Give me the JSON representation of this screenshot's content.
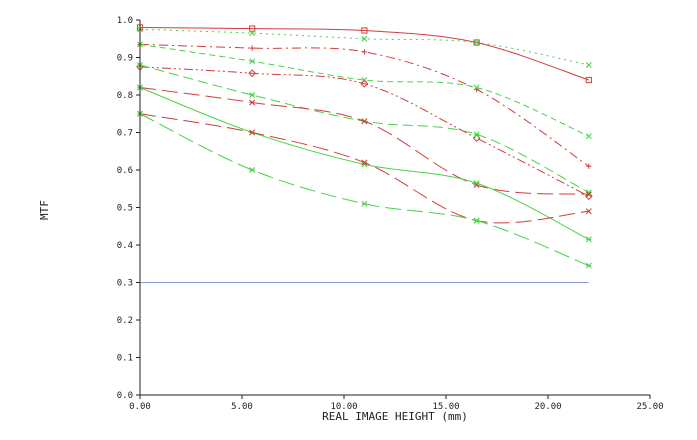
{
  "chart_data": {
    "type": "line",
    "xlabel": "REAL IMAGE HEIGHT (mm)",
    "ylabel": "MTF",
    "xlim": [
      0,
      25
    ],
    "ylim": [
      0,
      1
    ],
    "x_ticks": [
      "0.00",
      "5.00",
      "10.00",
      "15.00",
      "20.00",
      "25.00"
    ],
    "y_ticks": [
      "0.0",
      "0.1",
      "0.2",
      "0.3",
      "0.4",
      "0.5",
      "0.6",
      "0.7",
      "0.8",
      "0.9",
      "1.0"
    ],
    "grid": false,
    "legend": "none",
    "colors": {
      "red": "#d23c3c",
      "green": "#4ad24a",
      "reference": "#8c9ad8"
    },
    "reference_line": {
      "y": 0.3
    },
    "series": [
      {
        "color": "red",
        "dash": "solid",
        "marker": "square",
        "x": [
          0,
          5.5,
          11,
          16.5,
          22
        ],
        "values": [
          0.98,
          0.977,
          0.972,
          0.94,
          0.84
        ]
      },
      {
        "color": "green",
        "dash": "dot",
        "marker": "x",
        "x": [
          0,
          5.5,
          11,
          16.5,
          22
        ],
        "values": [
          0.975,
          0.965,
          0.95,
          0.94,
          0.88
        ]
      },
      {
        "color": "red",
        "dash": "dash-dot",
        "marker": "plus",
        "x": [
          0,
          5.5,
          11,
          16.5,
          22
        ],
        "values": [
          0.935,
          0.925,
          0.915,
          0.815,
          0.61
        ]
      },
      {
        "color": "green",
        "dash": "short-dash",
        "marker": "x",
        "x": [
          0,
          5.5,
          11,
          16.5,
          22
        ],
        "values": [
          0.935,
          0.89,
          0.84,
          0.82,
          0.69
        ]
      },
      {
        "color": "red",
        "dash": "dash-dot-dot",
        "marker": "diamond",
        "x": [
          0,
          5.5,
          11,
          16.5,
          22
        ],
        "values": [
          0.875,
          0.858,
          0.83,
          0.685,
          0.53
        ]
      },
      {
        "color": "green",
        "dash": "dash",
        "marker": "asterisk",
        "x": [
          0,
          5.5,
          11,
          16.5,
          22
        ],
        "values": [
          0.88,
          0.8,
          0.73,
          0.695,
          0.54
        ]
      },
      {
        "color": "red",
        "dash": "long-dash",
        "marker": "x",
        "x": [
          0,
          5.5,
          11,
          16.5,
          22
        ],
        "values": [
          0.82,
          0.78,
          0.73,
          0.56,
          0.535
        ]
      },
      {
        "color": "green",
        "dash": "solid",
        "marker": "asterisk",
        "x": [
          0,
          5.5,
          11,
          16.5,
          22
        ],
        "values": [
          0.82,
          0.7,
          0.615,
          0.565,
          0.415
        ]
      },
      {
        "color": "red",
        "dash": "long-dash",
        "marker": "x",
        "x": [
          0,
          5.5,
          11,
          16.5,
          22
        ],
        "values": [
          0.75,
          0.7,
          0.62,
          0.465,
          0.49
        ]
      },
      {
        "color": "green",
        "dash": "long-dash",
        "marker": "asterisk",
        "x": [
          0,
          5.5,
          11,
          16.5,
          22
        ],
        "values": [
          0.75,
          0.6,
          0.51,
          0.465,
          0.345
        ]
      }
    ]
  }
}
